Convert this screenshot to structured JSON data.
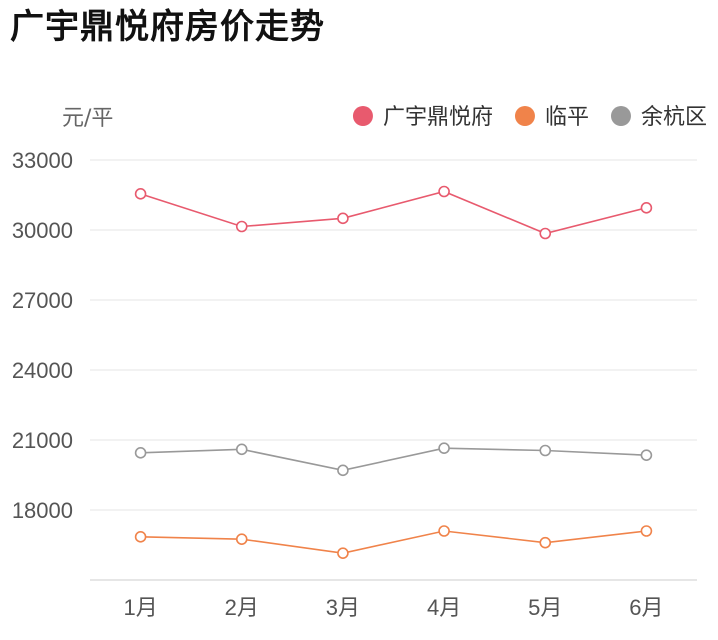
{
  "chart_data": {
    "type": "line",
    "title": "广宇鼎悦府房价走势",
    "unit_label": "元/平",
    "categories": [
      "1月",
      "2月",
      "3月",
      "4月",
      "5月",
      "6月"
    ],
    "ylim": [
      15000,
      33000
    ],
    "yticks": [
      18000,
      21000,
      24000,
      27000,
      30000,
      33000
    ],
    "grid": true,
    "legend_position": "top-right",
    "series": [
      {
        "name": "广宇鼎悦府",
        "color": "#e85a6e",
        "values": [
          31550,
          30150,
          30500,
          31650,
          29850,
          30950
        ]
      },
      {
        "name": "临平",
        "color": "#f0834a",
        "values": [
          16850,
          16750,
          16150,
          17100,
          16600,
          17100
        ]
      },
      {
        "name": "余杭区",
        "color": "#999999",
        "values": [
          20450,
          20600,
          19700,
          20650,
          20550,
          20350
        ]
      }
    ]
  }
}
